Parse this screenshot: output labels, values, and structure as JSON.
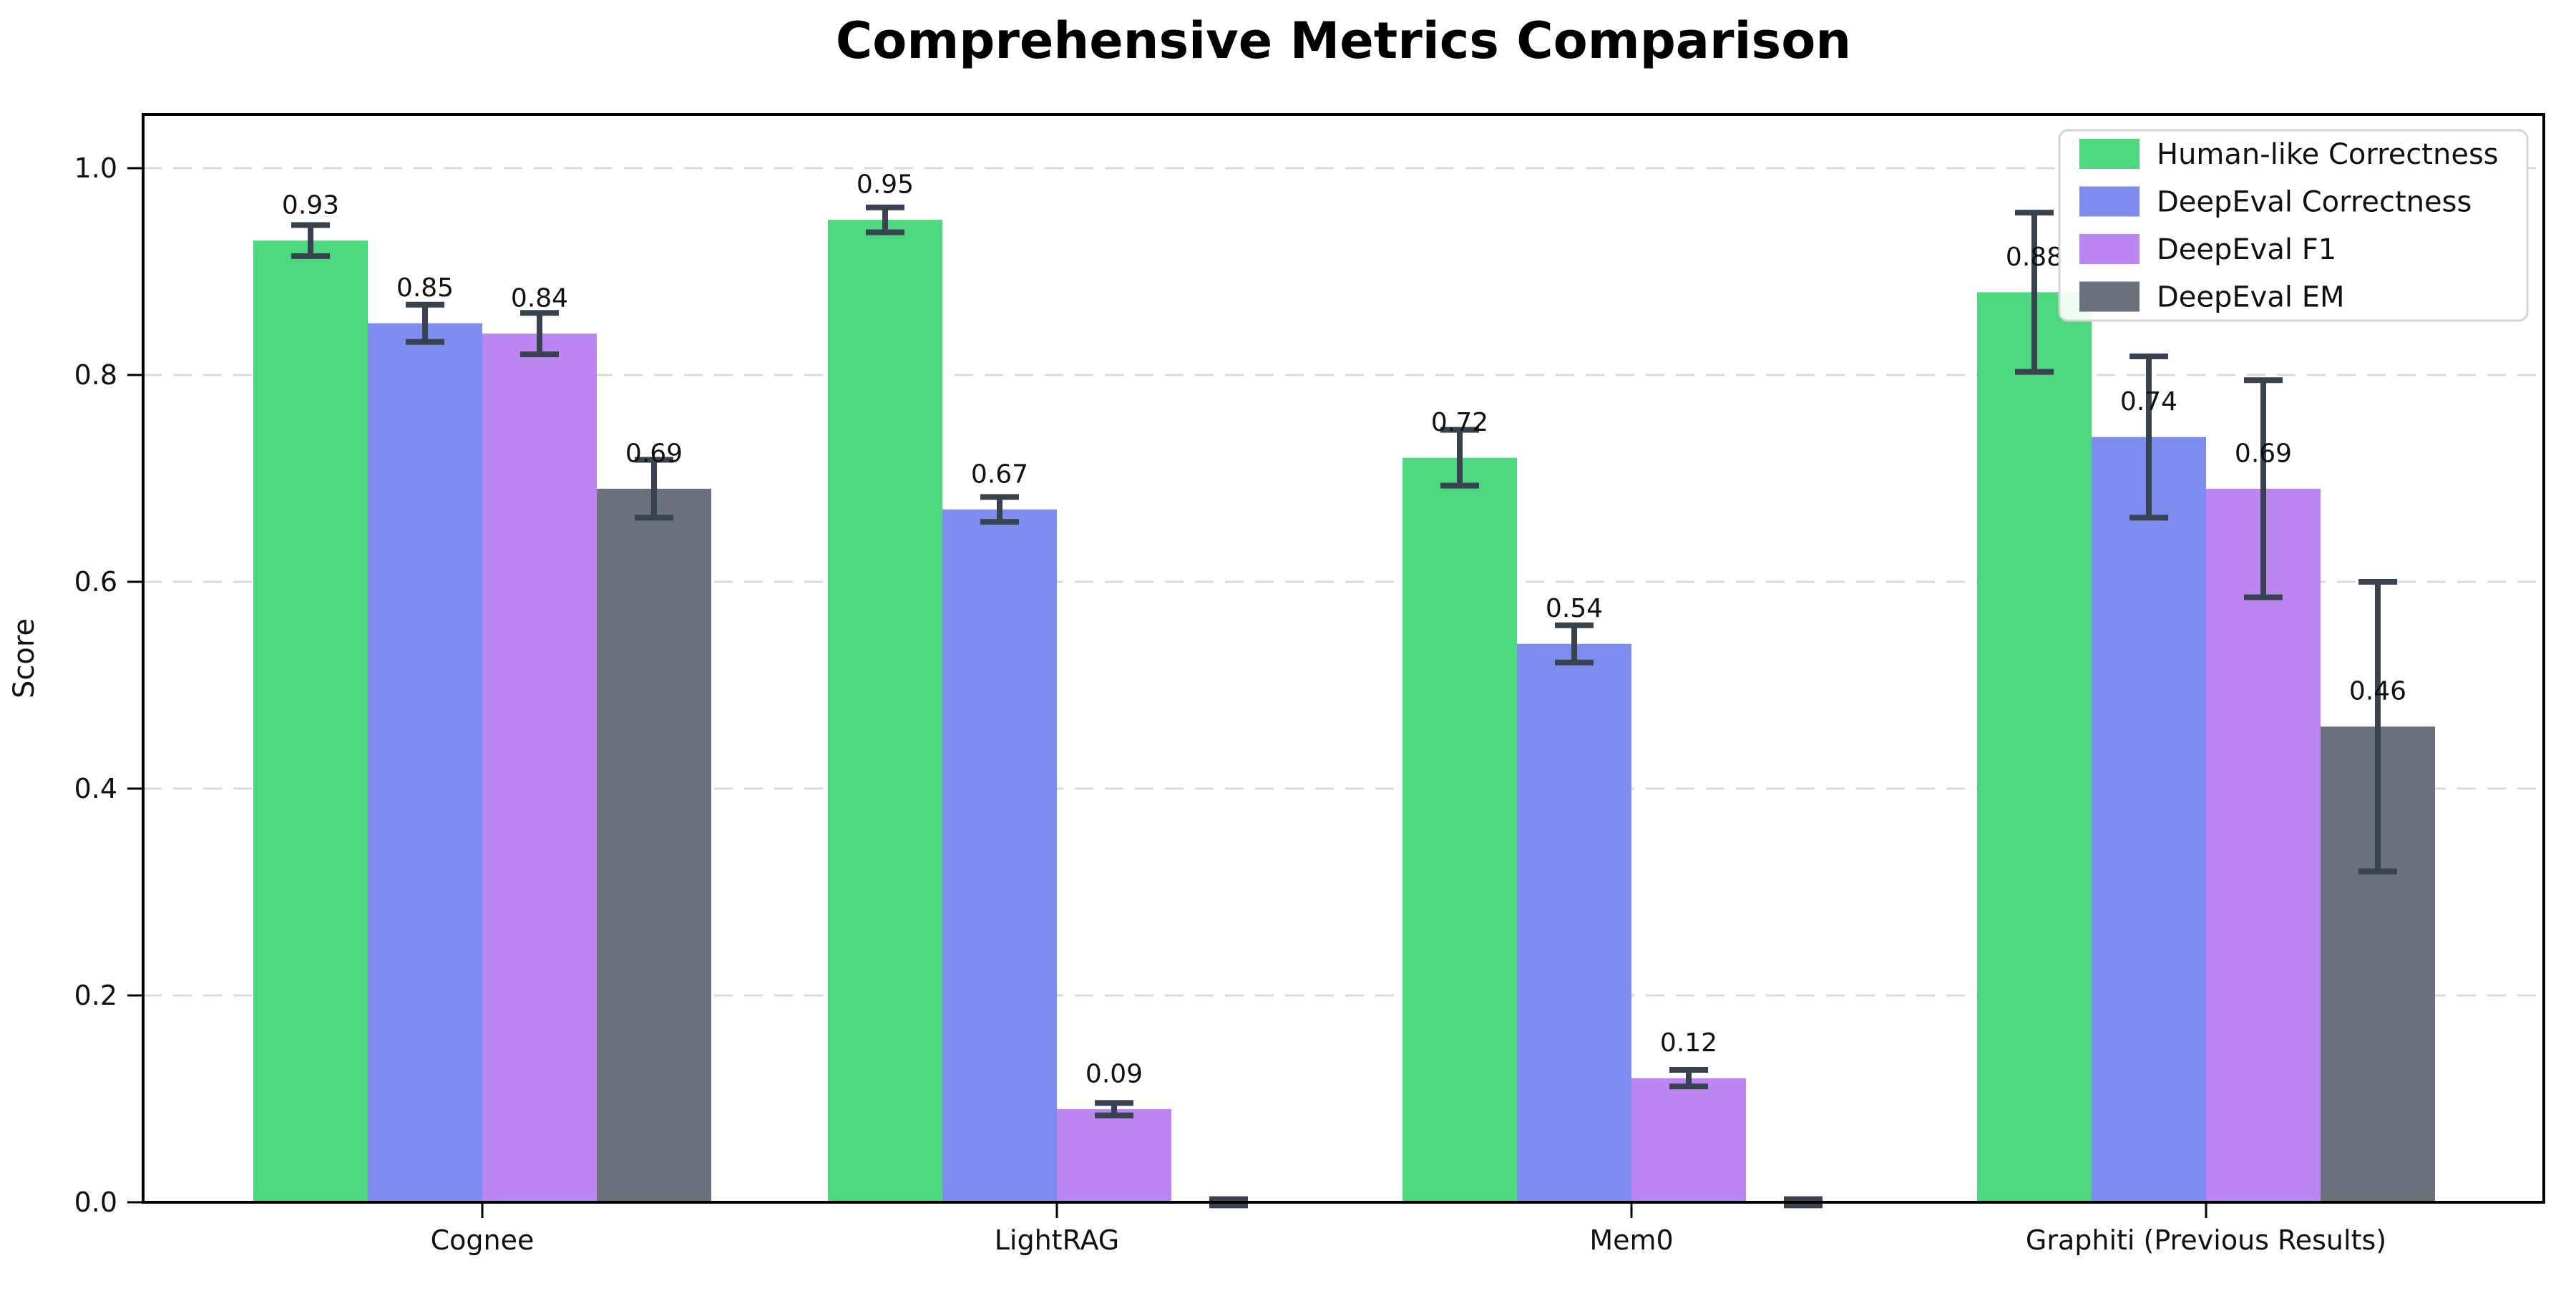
{
  "chart_data": {
    "type": "bar",
    "title": "Comprehensive Metrics Comparison",
    "ylabel": "Score",
    "xlabel": "",
    "categories": [
      "Cognee",
      "LightRAG",
      "Mem0",
      "Graphiti (Previous Results)"
    ],
    "series": [
      {
        "name": "Human-like Correctness",
        "color": "#4dd77f",
        "values": [
          0.93,
          0.95,
          0.72,
          0.88
        ],
        "errors": [
          0.015,
          0.012,
          0.027,
          0.077
        ]
      },
      {
        "name": "DeepEval Correctness",
        "color": "#7e8cf0",
        "values": [
          0.85,
          0.67,
          0.54,
          0.74
        ],
        "errors": [
          0.018,
          0.012,
          0.018,
          0.078
        ]
      },
      {
        "name": "DeepEval F1",
        "color": "#bb86f2",
        "values": [
          0.84,
          0.09,
          0.12,
          0.69
        ],
        "errors": [
          0.02,
          0.006,
          0.008,
          0.105
        ]
      },
      {
        "name": "DeepEval EM",
        "color": "#6a717c",
        "values": [
          0.69,
          0.0,
          0.0,
          0.46
        ],
        "errors": [
          0.028,
          0.003,
          0.003,
          0.14
        ]
      }
    ],
    "value_labels": [
      [
        "0.93",
        "0.95",
        "0.72",
        "0.88"
      ],
      [
        "0.85",
        "0.67",
        "0.54",
        "0.74"
      ],
      [
        "0.84",
        "0.09",
        "0.12",
        "0.69"
      ],
      [
        "0.69",
        "",
        "",
        "0.46"
      ]
    ],
    "ytick_labels": [
      "0.0",
      "0.2",
      "0.4",
      "0.6",
      "0.8",
      "1.0"
    ],
    "ylim": [
      0,
      1.05
    ],
    "grid": {
      "axis": "y",
      "style": "dashed",
      "color": "#d9d9d9"
    },
    "legend": {
      "position": "upper right"
    },
    "colors": {
      "error_bar": "#39424f",
      "axis": "#000000",
      "text": "#111111",
      "legend_border": "#d4d4d4",
      "legend_background": "#ffffff"
    }
  }
}
